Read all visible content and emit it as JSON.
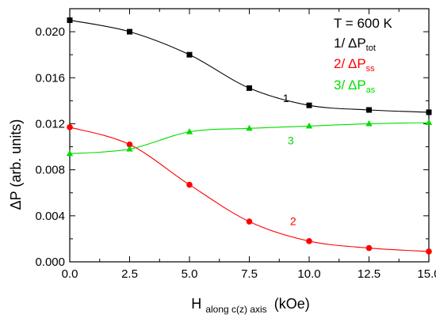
{
  "chart_data": {
    "type": "line",
    "xlabel": {
      "main": "H",
      "sub": "along c(z) axis",
      "unit": "(kOe)"
    },
    "ylabel": {
      "text": "ΔP (arb. units)"
    },
    "xlim": [
      0,
      15
    ],
    "ylim": [
      0,
      0.022
    ],
    "xticks": [
      0,
      2.5,
      5,
      7.5,
      10,
      12.5,
      15
    ],
    "xtick_labels": [
      "0.0",
      "2.5",
      "5.0",
      "7.5",
      "10.0",
      "12.5",
      "15.0"
    ],
    "yticks": [
      0,
      0.004,
      0.008,
      0.012,
      0.016,
      0.02
    ],
    "ytick_labels": [
      "0.000",
      "0.004",
      "0.008",
      "0.012",
      "0.016",
      "0.020"
    ],
    "legend_position": "top-right",
    "legend_header": "T = 600 K",
    "legend": [
      {
        "prefix": "1/ ΔP",
        "sub": "tot",
        "color": "#000000"
      },
      {
        "prefix": "2/ ΔP",
        "sub": "ss",
        "color": "#ff0000"
      },
      {
        "prefix": "3/ ΔP",
        "sub": "as",
        "color": "#00dd00"
      }
    ],
    "x": [
      0,
      2.5,
      5,
      7.5,
      10,
      12.5,
      15
    ],
    "series": [
      {
        "label": "1",
        "marker": "square",
        "color": "#000000",
        "values": [
          0.021,
          0.02,
          0.018,
          0.0151,
          0.0136,
          0.0132,
          0.013
        ],
        "label_at": [
          8.9,
          0.0139
        ]
      },
      {
        "label": "2",
        "marker": "circle",
        "color": "#ff0000",
        "values": [
          0.0117,
          0.0102,
          0.0067,
          0.0035,
          0.0018,
          0.0012,
          0.0009
        ],
        "label_at": [
          9.2,
          0.0032
        ]
      },
      {
        "label": "3",
        "marker": "triangle",
        "color": "#00dd00",
        "values": [
          0.0094,
          0.0098,
          0.0113,
          0.0116,
          0.0118,
          0.012,
          0.0121
        ],
        "label_at": [
          9.1,
          0.0102
        ]
      }
    ]
  }
}
